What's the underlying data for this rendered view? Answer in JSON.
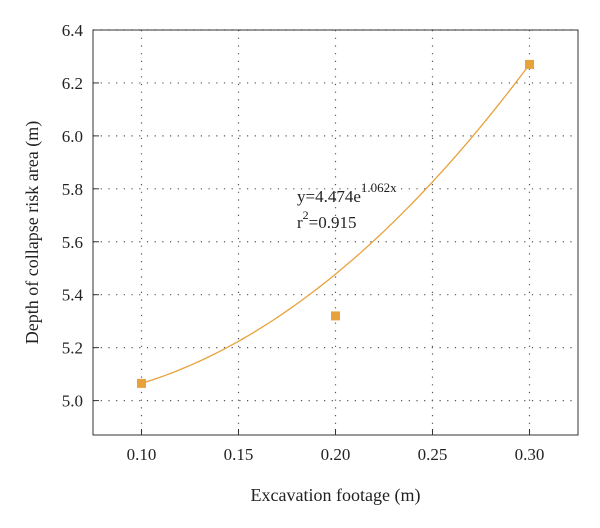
{
  "chart_data": {
    "type": "scatter",
    "xlabel": "Excavation footage (m)",
    "ylabel": "Depth of collapse risk area (m)",
    "xlim": [
      0.075,
      0.325
    ],
    "ylim": [
      4.87,
      6.4
    ],
    "x_ticks": [
      "0.10",
      "0.15",
      "0.20",
      "0.25",
      "0.30"
    ],
    "y_ticks": [
      "5.0",
      "5.2",
      "5.4",
      "5.6",
      "5.8",
      "6.0",
      "6.2",
      "6.4"
    ],
    "grid": true,
    "series": [
      {
        "points": [
          {
            "x": 0.1,
            "y": 5.065
          },
          {
            "x": 0.2,
            "y": 5.32
          },
          {
            "x": 0.3,
            "y": 6.27
          }
        ],
        "color": "#e8a23c",
        "marker": "square"
      }
    ],
    "fit": {
      "model": "exponential",
      "a": 4.474,
      "b": 1.062,
      "color": "#e8a23c"
    },
    "annotation": {
      "eq_prefix": "y=4.474e",
      "eq_exponent": "1.062x",
      "r_prefix": "r",
      "r_super": "2",
      "r_suffix": "=0.915"
    }
  }
}
